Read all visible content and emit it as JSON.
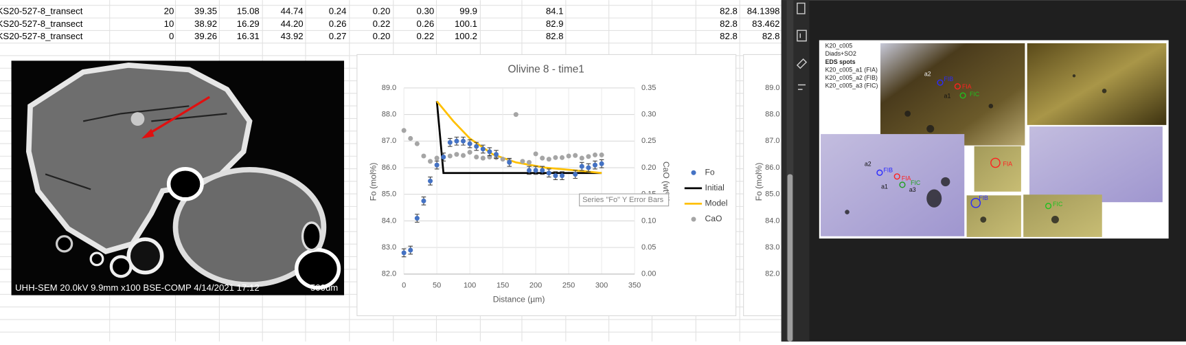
{
  "spreadsheet": {
    "rows": [
      [
        "KS20-527-8_transect",
        "20",
        "39.35",
        "15.08",
        "44.74",
        "0.24",
        "0.20",
        "0.30",
        "99.9",
        "84.1",
        "82.8",
        "84.1398"
      ],
      [
        "KS20-527-8_transect",
        "10",
        "38.92",
        "16.29",
        "44.20",
        "0.26",
        "0.22",
        "0.26",
        "100.1",
        "82.9",
        "82.8",
        "83.462"
      ],
      [
        "KS20-527-8_transect",
        "0",
        "39.26",
        "16.31",
        "43.92",
        "0.27",
        "0.20",
        "0.22",
        "100.2",
        "82.8",
        "82.8",
        "82.8"
      ]
    ]
  },
  "sem_image": {
    "caption": "UHH-SEM 20.0kV 9.9mm x100 BSE-COMP 4/14/2021 17:12",
    "scale_bar": "500um"
  },
  "chart_data": [
    {
      "type": "scatter",
      "title": "Olivine 8 - time1",
      "x_label": "Distance (µm)",
      "y_label": "Fo (mol%)",
      "y2_label": "CaO (wt%)",
      "xlim": [
        0,
        350
      ],
      "xticks": [
        0,
        50,
        100,
        150,
        200,
        250,
        300,
        350
      ],
      "ylim": [
        82,
        89
      ],
      "yticks": [
        {
          "value": 82,
          "label": "82.0"
        },
        {
          "value": 83,
          "label": "83.0"
        },
        {
          "value": 84,
          "label": "84.0"
        },
        {
          "value": 85,
          "label": "85.0"
        },
        {
          "value": 86,
          "label": "86.0"
        },
        {
          "value": 87,
          "label": "87.0"
        },
        {
          "value": 88,
          "label": "88.0"
        },
        {
          "value": 89,
          "label": "89.0"
        }
      ],
      "y2lim": [
        0,
        0.35
      ],
      "y2ticks": [
        {
          "value": 0,
          "label": "0.00"
        },
        {
          "value": 0.05,
          "label": "0.05"
        },
        {
          "value": 0.1,
          "label": "0.10"
        },
        {
          "value": 0.15,
          "label": "0.15"
        },
        {
          "value": 0.2,
          "label": "0.20"
        },
        {
          "value": 0.25,
          "label": "0.25"
        },
        {
          "value": 0.3,
          "label": "0.30"
        },
        {
          "value": 0.35,
          "label": "0.35"
        }
      ],
      "grid": true,
      "series": [
        {
          "name": "Fo",
          "color": "#4472c4",
          "x": [
            0,
            10,
            20,
            30,
            40,
            50,
            60,
            70,
            80,
            90,
            100,
            110,
            120,
            130,
            140,
            160,
            190,
            200,
            210,
            220,
            230,
            240,
            260,
            270,
            280,
            290,
            300
          ],
          "values": [
            82.8,
            82.9,
            84.1,
            84.75,
            85.5,
            86.1,
            86.4,
            86.95,
            87.0,
            87.0,
            86.9,
            86.8,
            86.7,
            86.6,
            86.5,
            86.2,
            85.9,
            85.9,
            85.9,
            85.8,
            85.7,
            85.7,
            85.75,
            86.05,
            86.0,
            86.1,
            86.15
          ],
          "errors": [
            0.15,
            0.15,
            0.15,
            0.15,
            0.15,
            0.15,
            0.15,
            0.15,
            0.15,
            0.15,
            0.15,
            0.15,
            0.15,
            0.15,
            0.15,
            0.15,
            0.15,
            0.15,
            0.15,
            0.15,
            0.15,
            0.15,
            0.15,
            0.15,
            0.15,
            0.15,
            0.15
          ]
        },
        {
          "name": "Initial",
          "color": "#000000",
          "type": "line",
          "x": [
            50,
            60,
            300
          ],
          "values": [
            88.5,
            85.8,
            85.8
          ]
        },
        {
          "name": "Model",
          "color": "#ffc000",
          "type": "line",
          "x": [
            50,
            75,
            100,
            135,
            170,
            215,
            260,
            300
          ],
          "values": [
            88.5,
            87.75,
            87.1,
            86.5,
            86.2,
            86.0,
            85.9,
            85.8
          ]
        },
        {
          "name": "CaO",
          "color": "#a5a5a5",
          "axis": "y2",
          "x": [
            0,
            10,
            20,
            30,
            40,
            50,
            60,
            70,
            80,
            90,
            100,
            110,
            120,
            130,
            140,
            150,
            160,
            170,
            180,
            190,
            200,
            210,
            220,
            230,
            240,
            250,
            260,
            270,
            280,
            290,
            300
          ],
          "values": [
            0.27,
            0.255,
            0.245,
            0.222,
            0.212,
            0.218,
            0.22,
            0.222,
            0.225,
            0.223,
            0.229,
            0.22,
            0.218,
            0.22,
            0.219,
            0.216,
            0.213,
            0.3,
            0.212,
            0.21,
            0.226,
            0.218,
            0.216,
            0.219,
            0.219,
            0.222,
            0.223,
            0.218,
            0.221,
            0.224,
            0.224
          ]
        }
      ],
      "tooltip": "Series \"Fo\" Y Error Bars"
    },
    {
      "type": "line",
      "y_label": "Fo (mol%)",
      "ylim": [
        82,
        89
      ],
      "yticks": [
        {
          "value": 82,
          "label": "82.0"
        },
        {
          "value": 83,
          "label": "83.0"
        },
        {
          "value": 84,
          "label": "84.0"
        },
        {
          "value": 85,
          "label": "85.0"
        },
        {
          "value": 86,
          "label": "86.0"
        },
        {
          "value": 87,
          "label": "87.0"
        },
        {
          "value": 88,
          "label": "88.0"
        },
        {
          "value": 89,
          "label": "89.0"
        }
      ]
    }
  ],
  "slide": {
    "notes": [
      "K20_c005",
      "Diads+SO2",
      "EDS spots",
      "K20_c005_a1 (FIA)",
      "K20_c005_a2 (FIB)",
      "K20_c005_a3 (FIC)"
    ],
    "photo_labels": [
      "a2",
      "FIB",
      "FIA",
      "a1",
      "FIC",
      "a2",
      "FIB",
      "FIA",
      "FIC",
      "a1",
      "a3",
      "FIA",
      "FIB",
      "FIC"
    ]
  }
}
